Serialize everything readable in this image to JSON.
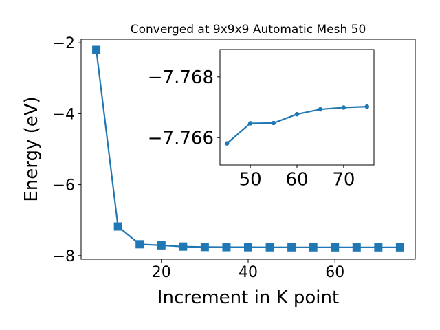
{
  "chart_data": [
    {
      "type": "line",
      "title": "Converged at 9x9x9 Automatic Mesh 50",
      "xlabel": "Increment in K point",
      "ylabel": "Energy (eV)",
      "xlim": [
        1.5,
        78.5
      ],
      "ylim": [
        -8.1,
        -1.9
      ],
      "xticks": [
        20,
        40,
        60
      ],
      "yticks": [
        -8,
        -6,
        -4,
        -2
      ],
      "xtick_labels": [
        "20",
        "40",
        "60"
      ],
      "ytick_labels": [
        "−8",
        "−6",
        "−4",
        "−2"
      ],
      "grid": false,
      "marker": "square",
      "color": "#1f77b4",
      "series": [
        {
          "x": [
            5,
            10,
            15,
            20,
            25,
            30,
            35,
            40,
            45,
            50,
            55,
            60,
            65,
            70,
            75
          ],
          "values": [
            -2.2,
            -7.18,
            -7.68,
            -7.71,
            -7.745,
            -7.758,
            -7.762,
            -7.764,
            -7.7658,
            -7.7665,
            -7.7665,
            -7.7668,
            -7.7669,
            -7.767,
            -7.767
          ]
        }
      ]
    },
    {
      "type": "line",
      "title": "",
      "xlabel": "",
      "ylabel": "",
      "xlim": [
        43.5,
        76.5
      ],
      "ylim": [
        -7.7651,
        -7.7689
      ],
      "xticks": [
        50,
        60,
        70
      ],
      "yticks": [
        -7.766,
        -7.768
      ],
      "xtick_labels": [
        "50",
        "60",
        "70"
      ],
      "ytick_labels": [
        "−7.766",
        "−7.768"
      ],
      "grid": false,
      "marker": "circle",
      "color": "#1f77b4",
      "series": [
        {
          "x": [
            45,
            50,
            55,
            60,
            65,
            70,
            75
          ],
          "values": [
            -7.76581,
            -7.76647,
            -7.76648,
            -7.76677,
            -7.76693,
            -7.76699,
            -7.76702
          ]
        }
      ]
    }
  ]
}
